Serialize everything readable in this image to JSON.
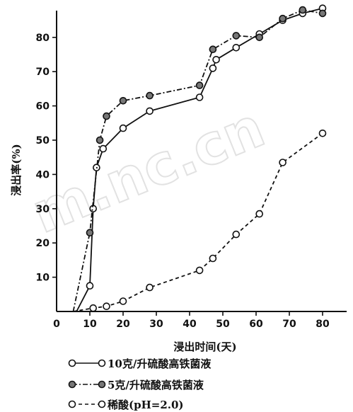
{
  "chart_data": {
    "type": "line",
    "title": "",
    "xlabel": "浸出时间(天)",
    "ylabel": "浸出率(%)",
    "xlim": [
      0,
      85
    ],
    "ylim": [
      0,
      88
    ],
    "xticks": [
      0,
      10,
      20,
      30,
      40,
      50,
      60,
      70,
      80
    ],
    "yticks": [
      10,
      20,
      30,
      40,
      50,
      60,
      70,
      80
    ],
    "grid": false,
    "legend_position": "bottom",
    "series": [
      {
        "name": "10克/升硫酸高铁菌液",
        "style": "solid",
        "marker": "hollow",
        "color": "#111111",
        "points": [
          [
            6,
            0
          ],
          [
            10,
            7.5
          ],
          [
            11,
            30
          ],
          [
            12,
            42
          ],
          [
            14,
            47.5
          ],
          [
            20,
            53.5
          ],
          [
            28,
            58.5
          ],
          [
            43,
            62.5
          ],
          [
            47,
            71
          ],
          [
            48,
            73.5
          ],
          [
            54,
            77
          ],
          [
            61,
            81
          ],
          [
            68,
            85
          ],
          [
            74,
            87
          ],
          [
            80,
            88.5
          ]
        ]
      },
      {
        "name": "5克/升硫酸高铁菌液",
        "style": "dashdot",
        "marker": "filled",
        "color": "#111111",
        "points": [
          [
            5,
            0
          ],
          [
            10,
            23
          ],
          [
            13,
            50
          ],
          [
            15,
            57
          ],
          [
            20,
            61.5
          ],
          [
            28,
            63
          ],
          [
            43,
            66
          ],
          [
            47,
            76.5
          ],
          [
            54,
            80.5
          ],
          [
            61,
            80
          ],
          [
            68,
            85.5
          ],
          [
            74,
            88
          ],
          [
            80,
            87
          ]
        ]
      },
      {
        "name": "稀酸(pH=2.0)",
        "style": "dashed",
        "marker": "hollow",
        "color": "#111111",
        "points": [
          [
            5,
            0
          ],
          [
            11,
            1
          ],
          [
            15,
            1.5
          ],
          [
            20,
            3
          ],
          [
            28,
            7
          ],
          [
            43,
            12
          ],
          [
            47,
            15.5
          ],
          [
            54,
            22.5
          ],
          [
            61,
            28.5
          ],
          [
            68,
            43.5
          ],
          [
            80,
            52
          ]
        ]
      }
    ]
  },
  "watermark_text": "m.nc.cn"
}
